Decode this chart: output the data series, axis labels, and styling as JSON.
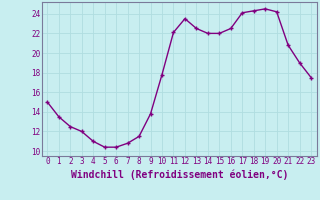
{
  "x": [
    0,
    1,
    2,
    3,
    4,
    5,
    6,
    7,
    8,
    9,
    10,
    11,
    12,
    13,
    14,
    15,
    16,
    17,
    18,
    19,
    20,
    21,
    22,
    23
  ],
  "y": [
    15,
    13.5,
    12.5,
    12,
    11,
    10.4,
    10.4,
    10.8,
    11.5,
    13.8,
    17.8,
    22.1,
    23.5,
    22.5,
    22,
    22,
    22.5,
    24.1,
    24.3,
    24.5,
    24.2,
    20.8,
    19.0,
    17.5
  ],
  "line_color": "#800080",
  "marker": "+",
  "bg_color": "#c8eef0",
  "grid_color": "#b0dde0",
  "xlabel": "Windchill (Refroidissement éolien,°C)",
  "ylim": [
    9.5,
    25.2
  ],
  "xlim": [
    -0.5,
    23.5
  ],
  "yticks": [
    10,
    12,
    14,
    16,
    18,
    20,
    22,
    24
  ],
  "xticks": [
    0,
    1,
    2,
    3,
    4,
    5,
    6,
    7,
    8,
    9,
    10,
    11,
    12,
    13,
    14,
    15,
    16,
    17,
    18,
    19,
    20,
    21,
    22,
    23
  ],
  "tick_label_fontsize": 5.5,
  "xlabel_fontsize": 7.0,
  "line_width": 1.0,
  "marker_size": 3.5,
  "marker_edge_width": 1.0
}
